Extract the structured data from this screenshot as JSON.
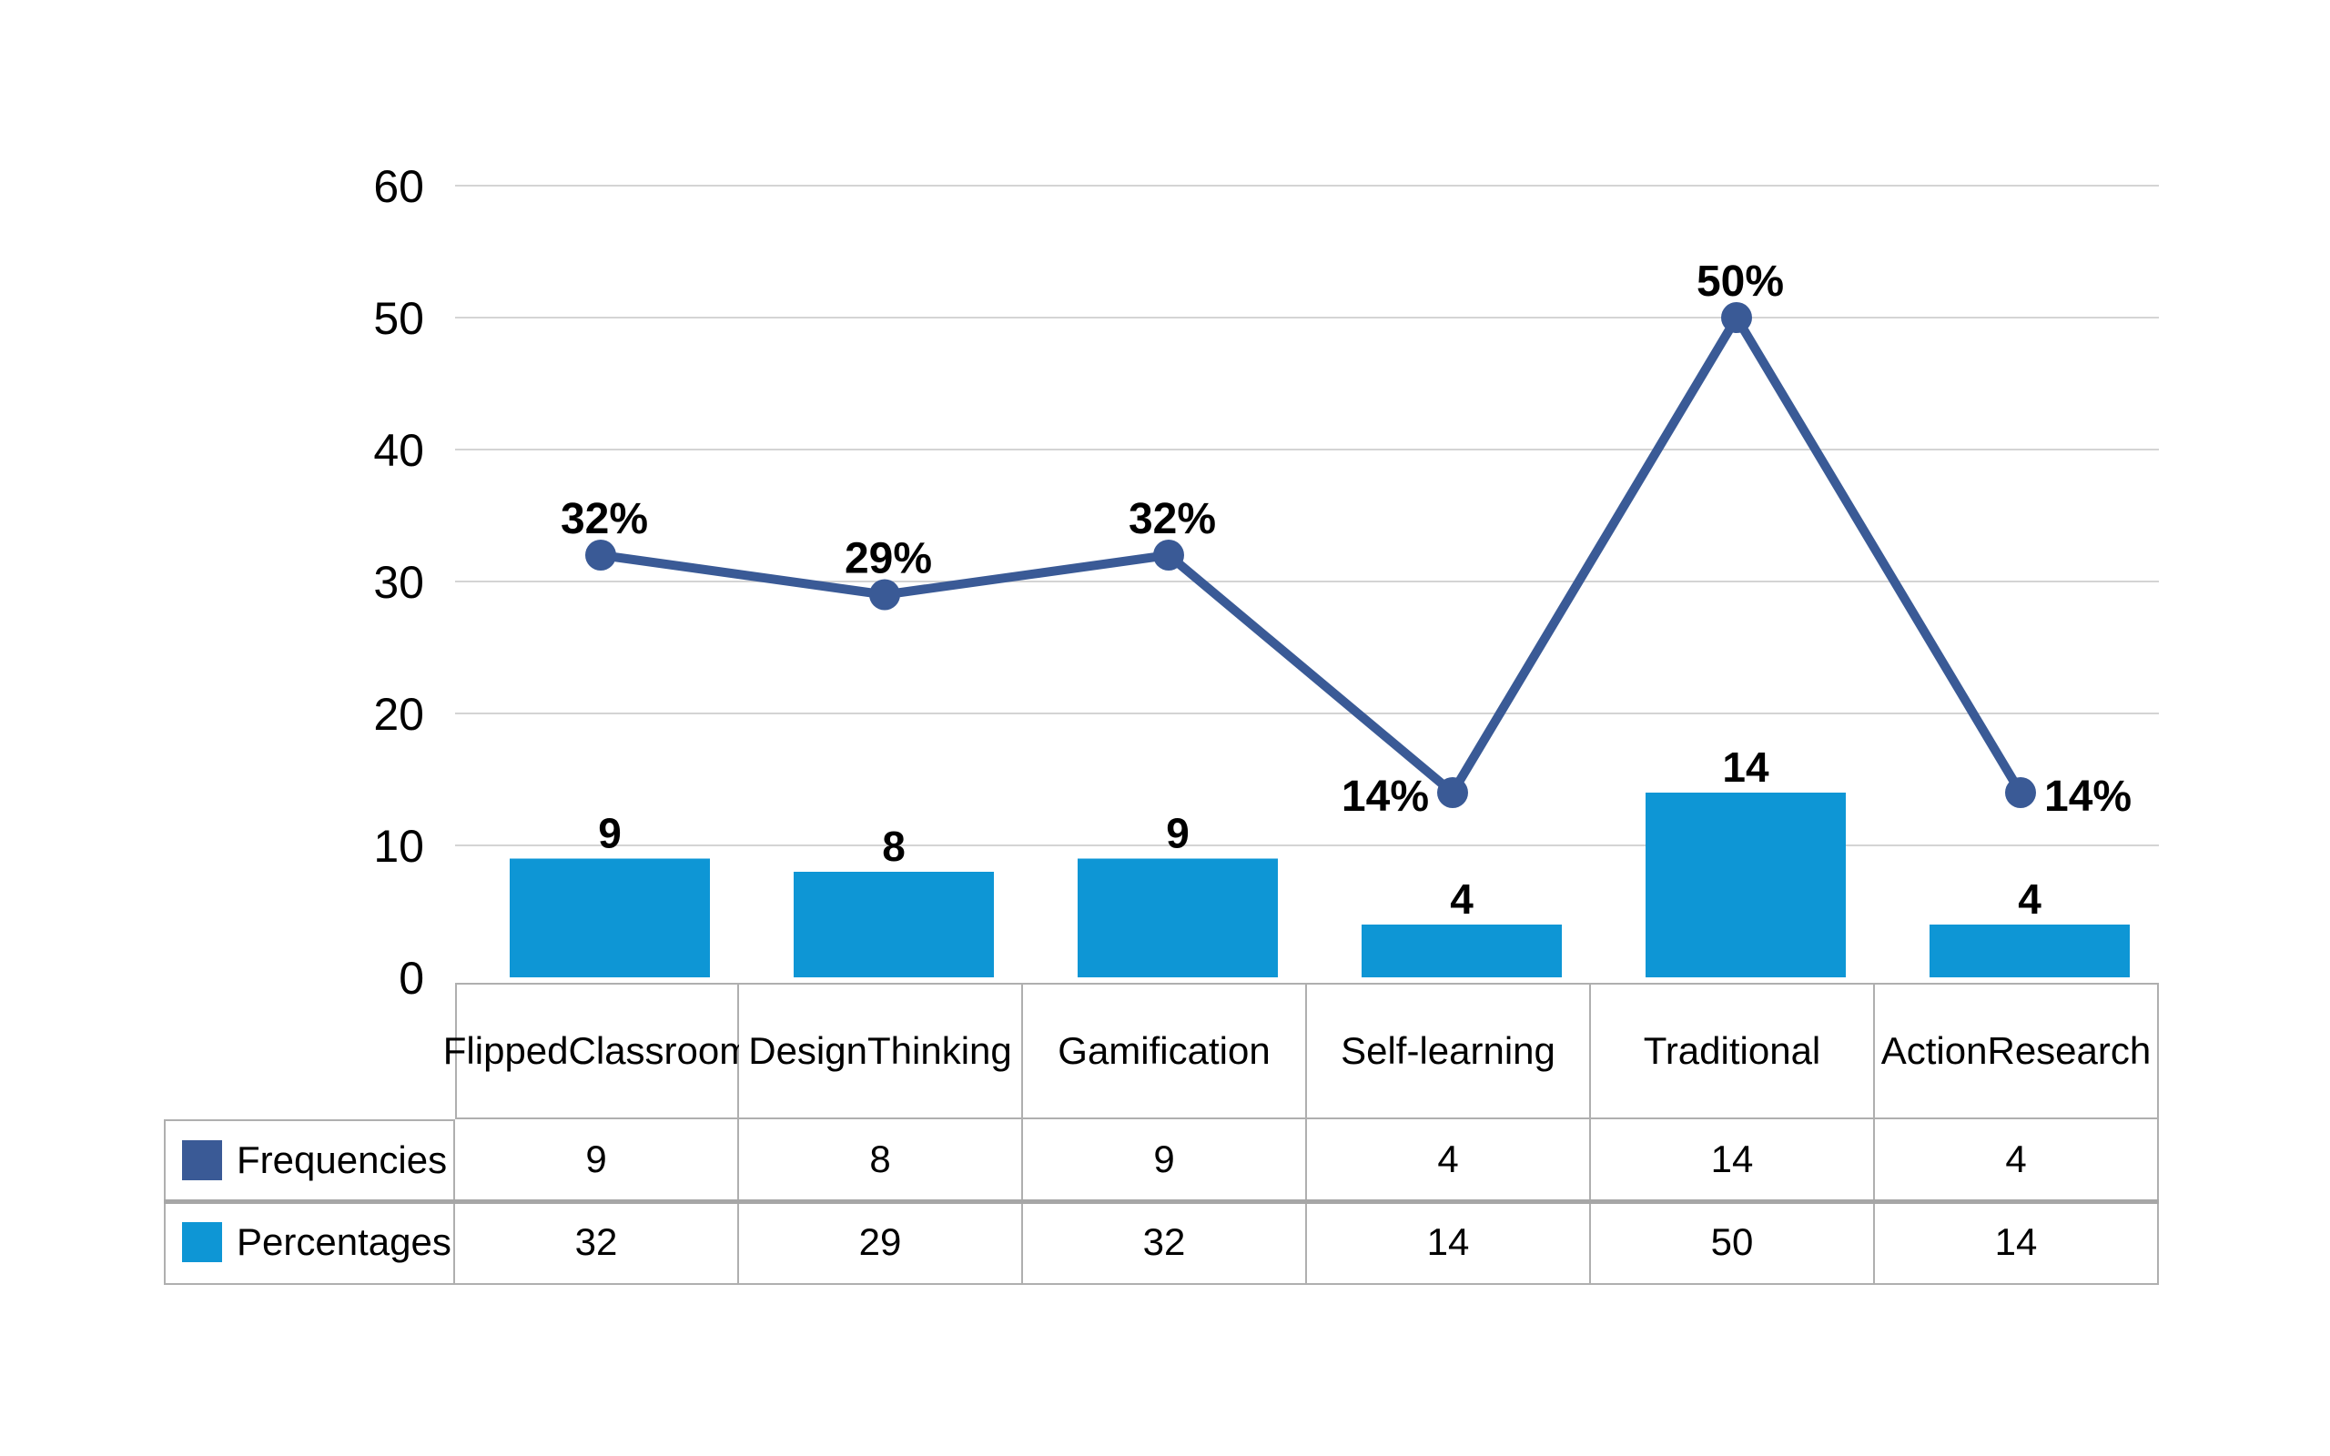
{
  "colors": {
    "bar": "#0E96D5",
    "line": "#3A5A96",
    "gridline": "#D4D4D4",
    "table_border": "#AFAFAF",
    "row_divider": "#A6A6A6",
    "text": "#000000"
  },
  "chart_data": {
    "type": "bar+line",
    "title": "",
    "xlabel": "",
    "ylabel": "",
    "categories": [
      "Flipped Classroom",
      "Design Thinking",
      "Gamification",
      "Self-learning",
      "Traditional",
      "Action Research"
    ],
    "series": [
      {
        "name": "Frequencies",
        "plot_as": "bar",
        "values": [
          9,
          8,
          9,
          4,
          14,
          4
        ],
        "labels": [
          "9",
          "8",
          "9",
          "4",
          "14",
          "4"
        ],
        "color": "#0E96D5",
        "legend_key_color": "#3A5A96"
      },
      {
        "name": "Percentages",
        "plot_as": "line",
        "values": [
          32,
          29,
          32,
          14,
          50,
          14
        ],
        "labels": [
          "32%",
          "29%",
          "32%",
          "14%",
          "50%",
          "14%"
        ],
        "label_positions": [
          "above",
          "above",
          "above",
          "left",
          "above",
          "right"
        ],
        "color": "#3A5A96",
        "legend_key_color": "#0E96D5"
      }
    ],
    "ylim": [
      0,
      60
    ],
    "ytick_labels": [
      "0",
      "10",
      "20",
      "30",
      "40",
      "50",
      "60"
    ],
    "grid": true,
    "legend_position": "table-left-stub"
  },
  "table": {
    "header_lines": [
      [
        "Flipped",
        "Classroom"
      ],
      [
        "Design",
        "Thinking"
      ],
      [
        "Gamification"
      ],
      [
        "Self-learning"
      ],
      [
        "Traditional"
      ],
      [
        "Action",
        "Research"
      ]
    ],
    "rows": [
      {
        "label": "Frequencies",
        "values": [
          "9",
          "8",
          "9",
          "4",
          "14",
          "4"
        ]
      },
      {
        "label": "Percentages",
        "values": [
          "32",
          "29",
          "32",
          "14",
          "50",
          "14"
        ]
      }
    ]
  }
}
